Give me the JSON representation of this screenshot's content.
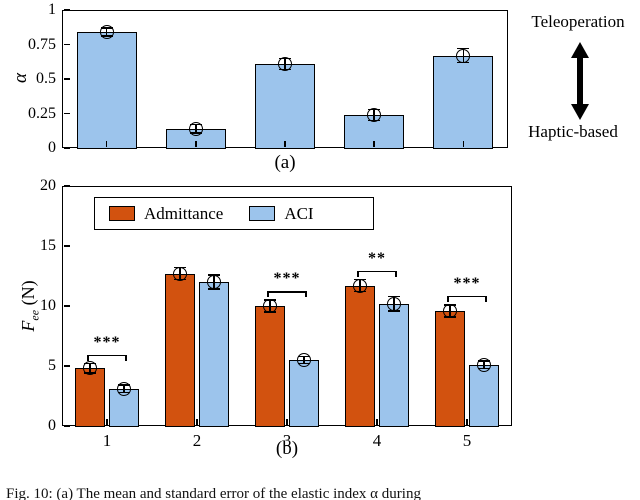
{
  "figure": {
    "panel_a_label": "(a)",
    "panel_b_label": "(b)",
    "annotation_top": "Teleoperation",
    "annotation_bottom": "Haptic-based",
    "caption": "Fig. 10: (a) The mean and standard error of the elastic index α during"
  },
  "axis_b": {
    "ylabel_main": "F",
    "ylabel_sub": "ee",
    "ylabel_unit": " (N)"
  },
  "chart_data": [
    {
      "id": "panel-a",
      "type": "bar",
      "ylabel": "α",
      "values": [
        0.84,
        0.14,
        0.61,
        0.24,
        0.67
      ],
      "errors": [
        0.03,
        0.03,
        0.04,
        0.04,
        0.05
      ],
      "ylim": [
        0,
        1
      ],
      "yticks": [
        0,
        0.25,
        0.5,
        0.75,
        1
      ],
      "bar_color": "#9CC4EC",
      "grid": false,
      "annotations": [
        "Teleoperation",
        "Haptic-based"
      ]
    },
    {
      "id": "panel-b",
      "type": "grouped-bar",
      "ylabel": "F_ee (N)",
      "categories": [
        "1",
        "2",
        "3",
        "4",
        "5"
      ],
      "series": [
        {
          "name": "Admittance",
          "color": "#D2520F",
          "values": [
            4.8,
            12.7,
            10.0,
            11.7,
            9.6
          ],
          "errors": [
            0.4,
            0.5,
            0.5,
            0.5,
            0.5
          ]
        },
        {
          "name": "ACI",
          "color": "#9CC4EC",
          "values": [
            3.1,
            12.0,
            5.5,
            10.2,
            5.1
          ],
          "errors": [
            0.3,
            0.6,
            0.3,
            0.6,
            0.3
          ]
        }
      ],
      "ylim": [
        0,
        20
      ],
      "yticks": [
        0,
        5,
        10,
        15,
        20
      ],
      "legend_position": "north-west",
      "grid": false,
      "significance": [
        {
          "group_index": 0,
          "label": "***"
        },
        {
          "group_index": 2,
          "label": "***"
        },
        {
          "group_index": 3,
          "label": "**"
        },
        {
          "group_index": 4,
          "label": "***"
        }
      ]
    }
  ]
}
